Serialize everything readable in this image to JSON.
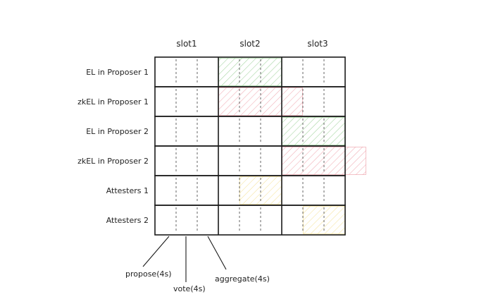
{
  "slots": [
    "slot1",
    "slot2",
    "slot3"
  ],
  "rows": [
    {
      "label": "EL in Proposer 1"
    },
    {
      "label": "zkEL in Proposer 1"
    },
    {
      "label": "EL in Proposer 2"
    },
    {
      "label": "zkEL in Proposer 2"
    },
    {
      "label": "Attesters 1"
    },
    {
      "label": "Attesters 2"
    }
  ],
  "phases": [
    "propose(4s)",
    "vote(4s)",
    "aggregate(4s)"
  ],
  "colors": {
    "green": "#9ed29a",
    "red": "#f0a8b0",
    "yellow": "#f5e29a",
    "ink": "#1a1a1a"
  },
  "highlights": [
    {
      "row": 0,
      "color": "green",
      "start_slot": 1,
      "start_phase": 0,
      "phases": 3
    },
    {
      "row": 1,
      "color": "red",
      "start_slot": 1,
      "start_phase": 0,
      "phases": 4
    },
    {
      "row": 2,
      "color": "green",
      "start_slot": 2,
      "start_phase": 0,
      "phases": 3
    },
    {
      "row": 3,
      "color": "red",
      "start_slot": 2,
      "start_phase": 0,
      "phases": 4
    },
    {
      "row": 4,
      "color": "yellow",
      "start_slot": 1,
      "start_phase": 1,
      "phases": 2
    },
    {
      "row": 5,
      "color": "yellow",
      "start_slot": 2,
      "start_phase": 1,
      "phases": 2
    }
  ]
}
